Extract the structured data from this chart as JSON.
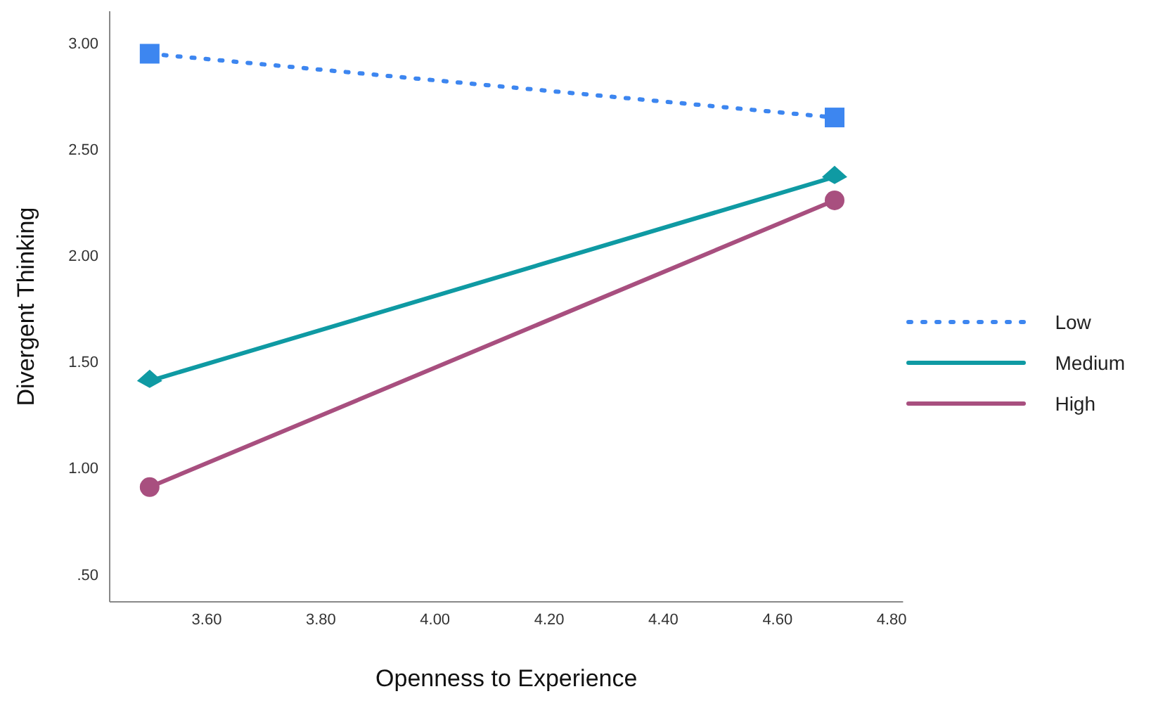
{
  "chart_data": {
    "type": "line",
    "xlabel": "Openness to Experience",
    "ylabel": "Divergent Thinking",
    "x": [
      3.5,
      4.7
    ],
    "series": [
      {
        "name": "Low",
        "color": "#3d86f0",
        "values": [
          2.95,
          2.65
        ],
        "marker": "square",
        "line_style": "dotted"
      },
      {
        "name": "Medium",
        "color": "#0f9aa3",
        "values": [
          1.41,
          2.37
        ],
        "marker": "diamond",
        "line_style": "solid"
      },
      {
        "name": "High",
        "color": "#a84f7f",
        "values": [
          0.91,
          2.26
        ],
        "marker": "circle",
        "line_style": "solid"
      }
    ],
    "xlim": [
      3.43,
      4.82
    ],
    "xticks": [
      {
        "value": 3.6,
        "label": "3.60"
      },
      {
        "value": 3.8,
        "label": "3.80"
      },
      {
        "value": 4.0,
        "label": "4.00"
      },
      {
        "value": 4.2,
        "label": "4.20"
      },
      {
        "value": 4.4,
        "label": "4.40"
      },
      {
        "value": 4.6,
        "label": "4.60"
      },
      {
        "value": 4.8,
        "label": "4.80"
      }
    ],
    "ylim": [
      0.37,
      3.15
    ],
    "yticks": [
      {
        "value": 0.5,
        "label": ".50"
      },
      {
        "value": 1,
        "label": "1.00"
      },
      {
        "value": 1.5,
        "label": "1.50"
      },
      {
        "value": 2,
        "label": "2.00"
      },
      {
        "value": 2.5,
        "label": "2.50"
      },
      {
        "value": 3,
        "label": "3.00"
      }
    ],
    "grid": false,
    "legend": "right"
  }
}
